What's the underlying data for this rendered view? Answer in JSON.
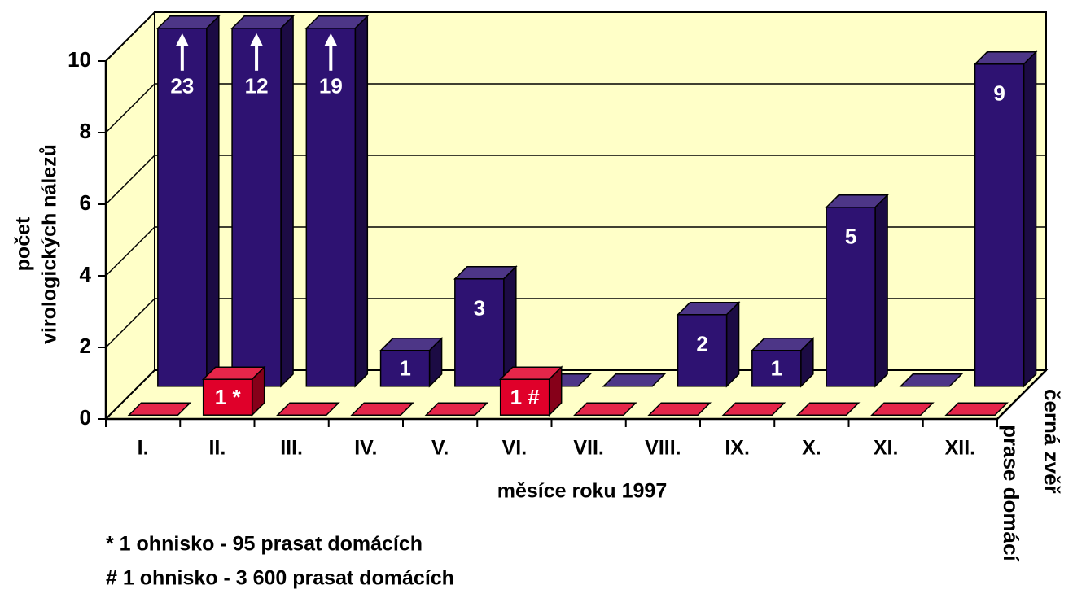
{
  "chart_data": {
    "type": "bar3d",
    "ylabel": [
      "počet",
      "virologických nálezů"
    ],
    "xlabel": "měsíce roku 1997",
    "categories": [
      "I.",
      "II.",
      "III.",
      "IV.",
      "V.",
      "VI.",
      "VII.",
      "VIII.",
      "IX.",
      "X.",
      "XI.",
      "XII."
    ],
    "series": [
      {
        "name": "černá zvěř",
        "color": "#2e1272",
        "values": [
          23,
          12,
          19,
          1,
          3,
          0,
          0,
          2,
          1,
          5,
          0,
          9
        ]
      },
      {
        "name": "prase domácí",
        "color": "#e0002a",
        "values": [
          0,
          1,
          0,
          0,
          0,
          1,
          0,
          0,
          0,
          0,
          0,
          0
        ],
        "value_labels": [
          null,
          "1 *",
          null,
          null,
          null,
          "1 #",
          null,
          null,
          null,
          null,
          null,
          null
        ]
      }
    ],
    "ylim": [
      0,
      10
    ],
    "yticks": [
      0,
      2,
      4,
      6,
      8,
      10
    ],
    "grid": true,
    "notes": [
      "* 1 ohnisko - 95 prasat domácích",
      "# 1 ohnisko - 3 600 prasat domácích"
    ]
  }
}
